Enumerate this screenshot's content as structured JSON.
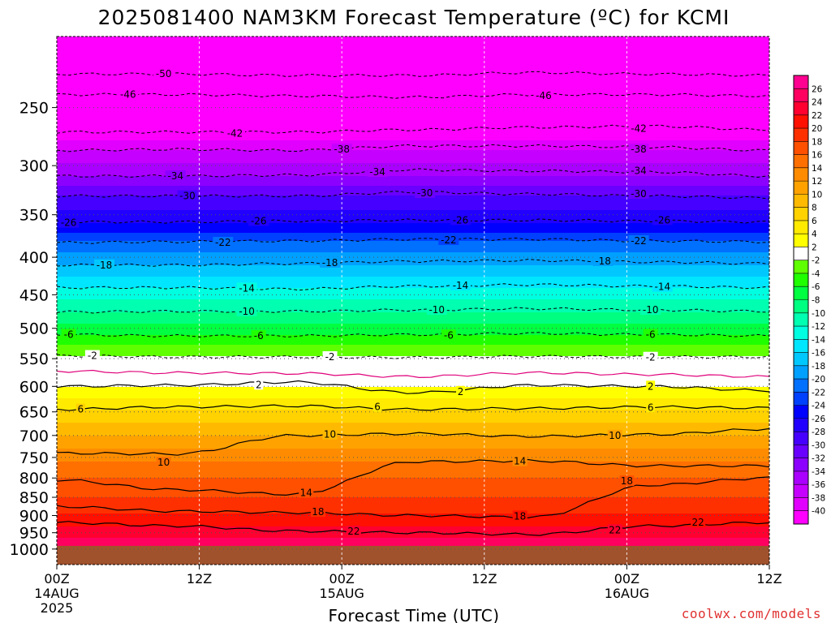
{
  "chart_data": {
    "type": "heatmap",
    "title": "2025081400 NAM3KM Forecast Temperature (ºC) for KCMI",
    "xlabel": "Forecast Time (UTC)",
    "ylabel": "",
    "credit": "coolwx.com/models",
    "x_ticks": [
      {
        "label": "00Z",
        "date": "14AUG",
        "year": "2025",
        "hours": 0
      },
      {
        "label": "12Z",
        "date": "",
        "year": "",
        "hours": 12
      },
      {
        "label": "00Z",
        "date": "15AUG",
        "year": "",
        "hours": 24
      },
      {
        "label": "12Z",
        "date": "",
        "year": "",
        "hours": 36
      },
      {
        "label": "00Z",
        "date": "16AUG",
        "year": "",
        "hours": 48
      },
      {
        "label": "12Z",
        "date": "",
        "year": "",
        "hours": 60
      }
    ],
    "xlim": [
      0,
      60
    ],
    "y_ticks": [
      250,
      300,
      350,
      400,
      450,
      500,
      550,
      600,
      650,
      700,
      750,
      800,
      850,
      900,
      950,
      1000
    ],
    "ylim": [
      200,
      1050
    ],
    "y_scale": "log",
    "y_direction": "pressure decreasing upward",
    "surface_pressure": 990,
    "colorbar_labels": [
      26,
      24,
      22,
      20,
      18,
      16,
      14,
      12,
      10,
      8,
      6,
      4,
      2,
      -2,
      -4,
      -6,
      -8,
      -10,
      -12,
      -14,
      -16,
      -18,
      -20,
      -22,
      -24,
      -26,
      -28,
      -30,
      -32,
      -34,
      -36,
      -38,
      -40
    ],
    "color_bands": [
      {
        "from": -42,
        "to": -40,
        "color": "#ff00ff"
      },
      {
        "from": -40,
        "to": -38,
        "color": "#e100ff"
      },
      {
        "from": -38,
        "to": -36,
        "color": "#c600ff"
      },
      {
        "from": -36,
        "to": -34,
        "color": "#aa00ff"
      },
      {
        "from": -34,
        "to": -32,
        "color": "#8c00ff"
      },
      {
        "from": -32,
        "to": -30,
        "color": "#6a00ff"
      },
      {
        "from": -30,
        "to": -28,
        "color": "#4600ff"
      },
      {
        "from": -28,
        "to": -26,
        "color": "#2200ff"
      },
      {
        "from": -26,
        "to": -24,
        "color": "#0000ff"
      },
      {
        "from": -24,
        "to": -22,
        "color": "#0040ff"
      },
      {
        "from": -22,
        "to": -20,
        "color": "#0070ff"
      },
      {
        "from": -20,
        "to": -18,
        "color": "#00a0ff"
      },
      {
        "from": -18,
        "to": -16,
        "color": "#00c8ff"
      },
      {
        "from": -16,
        "to": -14,
        "color": "#00e6ff"
      },
      {
        "from": -14,
        "to": -12,
        "color": "#00ffe0"
      },
      {
        "from": -12,
        "to": -10,
        "color": "#00ffb0"
      },
      {
        "from": -10,
        "to": -8,
        "color": "#00ff80"
      },
      {
        "from": -8,
        "to": -6,
        "color": "#00ff40"
      },
      {
        "from": -6,
        "to": -4,
        "color": "#20ff00"
      },
      {
        "from": -4,
        "to": -2,
        "color": "#60ff00"
      },
      {
        "from": -2,
        "to": 2,
        "color": "#ffffff"
      },
      {
        "from": 2,
        "to": 4,
        "color": "#ffff00"
      },
      {
        "from": 4,
        "to": 6,
        "color": "#ffea00"
      },
      {
        "from": 6,
        "to": 8,
        "color": "#ffd200"
      },
      {
        "from": 8,
        "to": 10,
        "color": "#ffba00"
      },
      {
        "from": 10,
        "to": 12,
        "color": "#ffa200"
      },
      {
        "from": 12,
        "to": 14,
        "color": "#ff8c00"
      },
      {
        "from": 14,
        "to": 16,
        "color": "#ff7000"
      },
      {
        "from": 16,
        "to": 18,
        "color": "#ff5000"
      },
      {
        "from": 18,
        "to": 20,
        "color": "#ff3000"
      },
      {
        "from": 20,
        "to": 22,
        "color": "#ff1000"
      },
      {
        "from": 22,
        "to": 24,
        "color": "#ff0030"
      },
      {
        "from": 24,
        "to": 26,
        "color": "#ff0060"
      },
      {
        "from": 26,
        "to": 28,
        "color": "#ff0090"
      }
    ],
    "ground_color": "#a0522d",
    "zero_line_color": "#e0007a",
    "vertical_profile": [
      {
        "p": 210,
        "t": -52
      },
      {
        "p": 225,
        "t": -50
      },
      {
        "p": 240,
        "t": -46
      },
      {
        "p": 270,
        "t": -42
      },
      {
        "p": 285,
        "t": -38
      },
      {
        "p": 310,
        "t": -34
      },
      {
        "p": 330,
        "t": -30
      },
      {
        "p": 360,
        "t": -26
      },
      {
        "p": 380,
        "t": -22
      },
      {
        "p": 410,
        "t": -18
      },
      {
        "p": 440,
        "t": -14
      },
      {
        "p": 475,
        "t": -10
      },
      {
        "p": 510,
        "t": -6
      },
      {
        "p": 545,
        "t": -2
      },
      {
        "p": 575,
        "t": 0
      },
      {
        "p": 600,
        "t": 2
      },
      {
        "p": 645,
        "t": 6
      },
      {
        "p": 700,
        "t": 10
      },
      {
        "p": 760,
        "t": 14
      },
      {
        "p": 820,
        "t": 17
      },
      {
        "p": 880,
        "t": 19
      },
      {
        "p": 930,
        "t": 22
      },
      {
        "p": 980,
        "t": 25
      }
    ],
    "isotherm_levels": [
      {
        "t": -50,
        "p": [
          225,
          225,
          226,
          226,
          224,
          225,
          226
        ],
        "style": "dashed"
      },
      {
        "t": -46,
        "p": [
          240,
          240,
          241,
          242,
          240,
          240,
          241
        ],
        "style": "dashed"
      },
      {
        "t": -42,
        "p": [
          270,
          270,
          270,
          268,
          266,
          265,
          268
        ],
        "style": "dashed"
      },
      {
        "t": -38,
        "p": [
          286,
          285,
          286,
          282,
          282,
          283,
          286
        ],
        "style": "dashed"
      },
      {
        "t": -34,
        "p": [
          310,
          310,
          309,
          304,
          305,
          306,
          310
        ],
        "style": "dashed"
      },
      {
        "t": -30,
        "p": [
          330,
          330,
          330,
          326,
          328,
          330,
          332
        ],
        "style": "dashed"
      },
      {
        "t": -26,
        "p": [
          358,
          358,
          357,
          356,
          356,
          357,
          358
        ],
        "style": "dashed"
      },
      {
        "t": -22,
        "p": [
          382,
          381,
          380,
          378,
          378,
          380,
          381
        ],
        "style": "dashed"
      },
      {
        "t": -18,
        "p": [
          410,
          410,
          408,
          405,
          404,
          406,
          408
        ],
        "style": "dashed"
      },
      {
        "t": -14,
        "p": [
          440,
          440,
          442,
          438,
          436,
          438,
          440
        ],
        "style": "dashed"
      },
      {
        "t": -10,
        "p": [
          475,
          474,
          474,
          472,
          470,
          472,
          474
        ],
        "style": "dashed"
      },
      {
        "t": -6,
        "p": [
          510,
          512,
          512,
          510,
          508,
          510,
          512
        ],
        "style": "dashed"
      },
      {
        "t": -2,
        "p": [
          545,
          547,
          547,
          548,
          546,
          547,
          547
        ],
        "style": "dashed"
      },
      {
        "t": 0,
        "p": [
          572,
          575,
          576,
          582,
          575,
          578,
          582
        ],
        "style": "zero"
      },
      {
        "t": 2,
        "p": [
          600,
          598,
          592,
          612,
          598,
          600,
          608
        ],
        "style": "solid"
      },
      {
        "t": 6,
        "p": [
          645,
          640,
          638,
          645,
          643,
          640,
          642
        ],
        "style": "solid"
      },
      {
        "t": 10,
        "p": [
          740,
          742,
          700,
          696,
          702,
          698,
          686
        ],
        "style": "solid"
      },
      {
        "t": 14,
        "p": [
          805,
          830,
          842,
          760,
          758,
          770,
          770
        ],
        "style": "solid"
      },
      {
        "t": 18,
        "p": [
          875,
          888,
          892,
          900,
          905,
          818,
          800
        ],
        "style": "solid"
      },
      {
        "t": 22,
        "p": [
          920,
          930,
          945,
          950,
          955,
          930,
          920
        ],
        "style": "solid"
      }
    ],
    "contour_labels": [
      {
        "text": "-50",
        "x": 9,
        "p": 225
      },
      {
        "text": "-46",
        "x": 6,
        "p": 240
      },
      {
        "text": "-46",
        "x": 41,
        "p": 241
      },
      {
        "text": "-42",
        "x": 15,
        "p": 271
      },
      {
        "text": "-42",
        "x": 49,
        "p": 267
      },
      {
        "text": "-38",
        "x": 24,
        "p": 285
      },
      {
        "text": "-38",
        "x": 49,
        "p": 285
      },
      {
        "text": "-34",
        "x": 10,
        "p": 310
      },
      {
        "text": "-34",
        "x": 27,
        "p": 306
      },
      {
        "text": "-34",
        "x": 49,
        "p": 305
      },
      {
        "text": "-30",
        "x": 11,
        "p": 330
      },
      {
        "text": "-30",
        "x": 31,
        "p": 327
      },
      {
        "text": "-30",
        "x": 49,
        "p": 328
      },
      {
        "text": "-26",
        "x": 1,
        "p": 359
      },
      {
        "text": "-26",
        "x": 17,
        "p": 357
      },
      {
        "text": "-26",
        "x": 34,
        "p": 356
      },
      {
        "text": "-26",
        "x": 51,
        "p": 356
      },
      {
        "text": "-22",
        "x": 14,
        "p": 382
      },
      {
        "text": "-22",
        "x": 33,
        "p": 379
      },
      {
        "text": "-22",
        "x": 49,
        "p": 380
      },
      {
        "text": "-18",
        "x": 4,
        "p": 410
      },
      {
        "text": "-18",
        "x": 23,
        "p": 407
      },
      {
        "text": "-18",
        "x": 46,
        "p": 405
      },
      {
        "text": "-14",
        "x": 16,
        "p": 441
      },
      {
        "text": "-14",
        "x": 34,
        "p": 437
      },
      {
        "text": "-14",
        "x": 51,
        "p": 439
      },
      {
        "text": "-10",
        "x": 16,
        "p": 474
      },
      {
        "text": "-10",
        "x": 32,
        "p": 472
      },
      {
        "text": "-10",
        "x": 50,
        "p": 472
      },
      {
        "text": "-6",
        "x": 1,
        "p": 510
      },
      {
        "text": "-6",
        "x": 17,
        "p": 512
      },
      {
        "text": "-6",
        "x": 33,
        "p": 511
      },
      {
        "text": "-6",
        "x": 50,
        "p": 510
      },
      {
        "text": "-2",
        "x": 3,
        "p": 545
      },
      {
        "text": "-2",
        "x": 23,
        "p": 547
      },
      {
        "text": "-2",
        "x": 50,
        "p": 548
      },
      {
        "text": "2",
        "x": 17,
        "p": 597
      },
      {
        "text": "2",
        "x": 34,
        "p": 610
      },
      {
        "text": "2",
        "x": 50,
        "p": 600
      },
      {
        "text": "6",
        "x": 2,
        "p": 645
      },
      {
        "text": "6",
        "x": 27,
        "p": 640
      },
      {
        "text": "6",
        "x": 50,
        "p": 641
      },
      {
        "text": "10",
        "x": 9,
        "p": 762
      },
      {
        "text": "10",
        "x": 23,
        "p": 698
      },
      {
        "text": "10",
        "x": 47,
        "p": 700
      },
      {
        "text": "14",
        "x": 21,
        "p": 838
      },
      {
        "text": "14",
        "x": 39,
        "p": 759
      },
      {
        "text": "18",
        "x": 22,
        "p": 890
      },
      {
        "text": "18",
        "x": 39,
        "p": 902
      },
      {
        "text": "18",
        "x": 48,
        "p": 808
      },
      {
        "text": "22",
        "x": 25,
        "p": 946
      },
      {
        "text": "22",
        "x": 47,
        "p": 942
      },
      {
        "text": "22",
        "x": 54,
        "p": 920
      }
    ],
    "grid": true,
    "legend": "colorbar right"
  }
}
